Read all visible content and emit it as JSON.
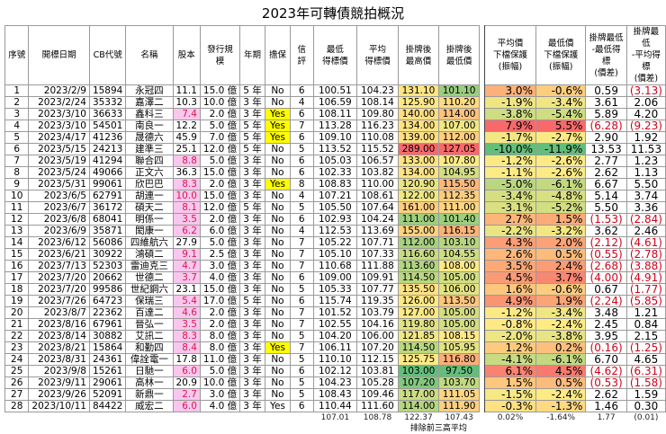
{
  "title": "2023年可轉債競拍概況",
  "headers": [
    "序號",
    "開標日期",
    "CB代號",
    "名稱",
    "股本",
    "發行規模",
    "年期",
    "擔保",
    "信評",
    "最低\n得標價",
    "平均\n得標價",
    "掛牌後\n最高價",
    "掛牌後\n最低價",
    "平均價\n下檔保護\n(振幅)",
    "最低價\n下檔保護\n(振幅)",
    "掛牌最低\n-最低得標\n(價差)",
    "掛牌最低\n-平均得標\n(價差)"
  ],
  "rows": [
    [
      "1",
      "2023/2/9",
      "15894",
      "永冠四",
      "11.1",
      "15.0 億",
      "5 年",
      "No",
      "6",
      "100.51",
      "104.23",
      "131.10",
      "101.10",
      "3.0%",
      "-0.6%",
      "0.59",
      "(3.13)"
    ],
    [
      "2",
      "2023/2/24",
      "35332",
      "嘉澤二",
      "10.3",
      "10.0 億",
      "3 年",
      "No",
      "4",
      "106.59",
      "108.14",
      "125.90",
      "110.20",
      "-1.9%",
      "-3.4%",
      "3.61",
      "2.06"
    ],
    [
      "3",
      "2023/3/10",
      "36633",
      "鑫科三",
      "7.4",
      "2.0 億",
      "3 年",
      "Yes",
      "6",
      "108.11",
      "109.80",
      "140.00",
      "114.00",
      "-3.8%",
      "-5.4%",
      "5.89",
      "4.20"
    ],
    [
      "4",
      "2023/3/10",
      "54501",
      "南良一",
      "12.2",
      "5.0 億",
      "5 年",
      "Yes",
      "7",
      "113.28",
      "116.23",
      "134.00",
      "107.00",
      "7.9%",
      "5.5%",
      "(6.28)",
      "(9.23)"
    ],
    [
      "5",
      "2023/4/17",
      "41236",
      "晟德六",
      "45.9",
      "7.0 億",
      "5 年",
      "Yes",
      "6",
      "109.10",
      "110.08",
      "139.00",
      "112.00",
      "-1.7%",
      "-2.7%",
      "2.90",
      "1.92"
    ],
    [
      "6",
      "2023/5/15",
      "24213",
      "建準三",
      "25.1",
      "12.0 億",
      "5 年",
      "No",
      "5",
      "113.52",
      "115.52",
      "289.00",
      "127.05",
      "-10.0%",
      "-11.9%",
      "13.53",
      "11.53"
    ],
    [
      "7",
      "2023/5/19",
      "41294",
      "聯合四",
      "8.8",
      "5.0 億",
      "3 年",
      "No",
      "6",
      "105.03",
      "106.57",
      "133.00",
      "107.80",
      "-1.2%",
      "-2.6%",
      "2.77",
      "1.23"
    ],
    [
      "8",
      "2023/5/24",
      "49066",
      "正文六",
      "36.3",
      "15.0 億",
      "3 年",
      "No",
      "6",
      "102.33",
      "103.82",
      "134.00",
      "104.95",
      "-1.1%",
      "-2.6%",
      "2.62",
      "1.13"
    ],
    [
      "9",
      "2023/5/31",
      "99061",
      "欣巴巴",
      "8.3",
      "2.0 億",
      "3 年",
      "Yes",
      "8",
      "108.83",
      "110.00",
      "120.90",
      "115.50",
      "-5.0%",
      "-6.1%",
      "6.67",
      "5.50"
    ],
    [
      "10",
      "2023/6/5",
      "62791",
      "胡連一",
      "10.0",
      "15.0 億",
      "3 年",
      "No",
      "4",
      "107.21",
      "108.61",
      "122.00",
      "112.35",
      "-3.4%",
      "-4.8%",
      "5.14",
      "3.74"
    ],
    [
      "11",
      "2023/6/7",
      "36172",
      "碩天二",
      "8.1",
      "12.0 億",
      "5 年",
      "No",
      "5",
      "105.50",
      "107.64",
      "161.00",
      "111.00",
      "-3.1%",
      "-5.2%",
      "5.50",
      "3.36"
    ],
    [
      "12",
      "2023/6/8",
      "68041",
      "明係一",
      "3.5",
      "2.0 億",
      "3 年",
      "No",
      "6",
      "102.93",
      "104.24",
      "111.00",
      "101.40",
      "2.7%",
      "1.5%",
      "(1.53)",
      "(2.84)"
    ],
    [
      "13",
      "2023/6/9",
      "35871",
      "閎康一",
      "6.2",
      "6.0 億",
      "3 年",
      "No",
      "4",
      "112.53",
      "113.69",
      "155.00",
      "116.15",
      "-2.2%",
      "-3.2%",
      "3.62",
      "2.46"
    ],
    [
      "14",
      "2023/6/12",
      "56086",
      "四維航六",
      "27.9",
      "5.0 億",
      "3 年",
      "No",
      "7",
      "105.22",
      "107.71",
      "112.00",
      "103.10",
      "4.3%",
      "2.0%",
      "(2.12)",
      "(4.61)"
    ],
    [
      "15",
      "2023/6/21",
      "30922",
      "鴻碩二",
      "9.1",
      "2.5 億",
      "3 年",
      "No",
      "7",
      "105.10",
      "107.33",
      "116.60",
      "104.55",
      "2.6%",
      "0.5%",
      "(0.55)",
      "(2.78)"
    ],
    [
      "16",
      "2023/7/13",
      "52303",
      "雷迪克三",
      "4.7",
      "3.0 億",
      "3 年",
      "No",
      "7",
      "110.68",
      "111.88",
      "113.60",
      "108.00",
      "3.5%",
      "2.4%",
      "(2.68)",
      "(3.88)"
    ],
    [
      "17",
      "2023/7/20",
      "20662",
      "世德二",
      "3.7",
      "4.0 億",
      "3 年",
      "No",
      "6",
      "109.00",
      "109.91",
      "114.50",
      "105.00",
      "4.5%",
      "3.7%",
      "(4.00)",
      "(4.91)"
    ],
    [
      "18",
      "2023/7/20",
      "99586",
      "世紀鋼六",
      "23.1",
      "15.0 億",
      "3 年",
      "No",
      "5",
      "105.33",
      "107.77",
      "135.50",
      "106.00",
      "1.6%",
      "-0.6%",
      "0.67",
      "(1.77)"
    ],
    [
      "19",
      "2023/7/26",
      "64723",
      "保瑞三",
      "5.4",
      "17.0 億",
      "5 年",
      "No",
      "6",
      "115.74",
      "119.35",
      "126.00",
      "113.50",
      "4.9%",
      "1.9%",
      "(2.24)",
      "(5.85)"
    ],
    [
      "20",
      "2023/8/7",
      "22362",
      "百達二",
      "4.6",
      "2.0 億",
      "3 年",
      "No",
      "7",
      "101.52",
      "103.79",
      "127.00",
      "105.00",
      "-1.2%",
      "-3.4%",
      "3.48",
      "1.21"
    ],
    [
      "21",
      "2023/8/16",
      "67961",
      "晉弘一",
      "3.5",
      "2.0 億",
      "3 年",
      "No",
      "7",
      "102.55",
      "104.16",
      "119.80",
      "105.00",
      "-0.8%",
      "-2.4%",
      "2.45",
      "0.84"
    ],
    [
      "22",
      "2023/8/14",
      "30882",
      "艾訊二",
      "8.3",
      "8.0 億",
      "3 年",
      "No",
      "5",
      "104.20",
      "106.00",
      "121.85",
      "108.15",
      "-2.0%",
      "-3.8%",
      "3.95",
      "2.15"
    ],
    [
      "23",
      "2023/8/21",
      "15864",
      "和勤四",
      "8.4",
      "8.0 億",
      "3 年",
      "Yes",
      "7",
      "106.11",
      "107.20",
      "114.50",
      "105.95",
      "1.2%",
      "0.2%",
      "(0.16)",
      "(1.25)"
    ],
    [
      "24",
      "2023/8/31",
      "24361",
      "偉詮電一",
      "17.8",
      "11.0 億",
      "3 年",
      "No",
      "5",
      "110.10",
      "112.15",
      "125.75",
      "116.80",
      "-4.1%",
      "-6.1%",
      "6.70",
      "4.65"
    ],
    [
      "25",
      "2023/9/8",
      "15261",
      "日馳一",
      "6.0",
      "5.0 億",
      "3 年",
      "No",
      "6",
      "102.12",
      "103.81",
      "103.00",
      "97.50",
      "6.1%",
      "4.5%",
      "(4.62)",
      "(6.31)"
    ],
    [
      "26",
      "2023/9/11",
      "29061",
      "高林一",
      "20.9",
      "10.0 億",
      "3 年",
      "No",
      "5",
      "104.23",
      "105.28",
      "107.20",
      "103.70",
      "1.5%",
      "0.5%",
      "(0.53)",
      "(1.58)"
    ],
    [
      "27",
      "2023/9/26",
      "52091",
      "新鼎一",
      "2.7",
      "3.0 億",
      "3 年",
      "No",
      "5",
      "108.43",
      "109.46",
      "117.00",
      "111.05",
      "-1.5%",
      "-2.4%",
      "2.62",
      "1.59"
    ],
    [
      "28",
      "2023/10/11",
      "84422",
      "威宏二",
      "6.0",
      "4.0 億",
      "3 年",
      "Yes",
      "6",
      "110.44",
      "111.60",
      "114.00",
      "111.90",
      "-0.3%",
      "-1.3%",
      "1.46",
      "0.30"
    ]
  ],
  "summary": [
    "107.01",
    "108.78",
    "122.37",
    "107.43",
    "0.02%",
    "-1.64%",
    "1.77",
    "(0.01)"
  ],
  "summary_note": "排除前三高平均",
  "colors": {
    "low": "#63be7b",
    "mid": "#ffeb84",
    "high": "#f8696b",
    "yes": "#ffff00",
    "small_capital_bg": "#f9c7ee",
    "negative_text": "#d0021b"
  }
}
